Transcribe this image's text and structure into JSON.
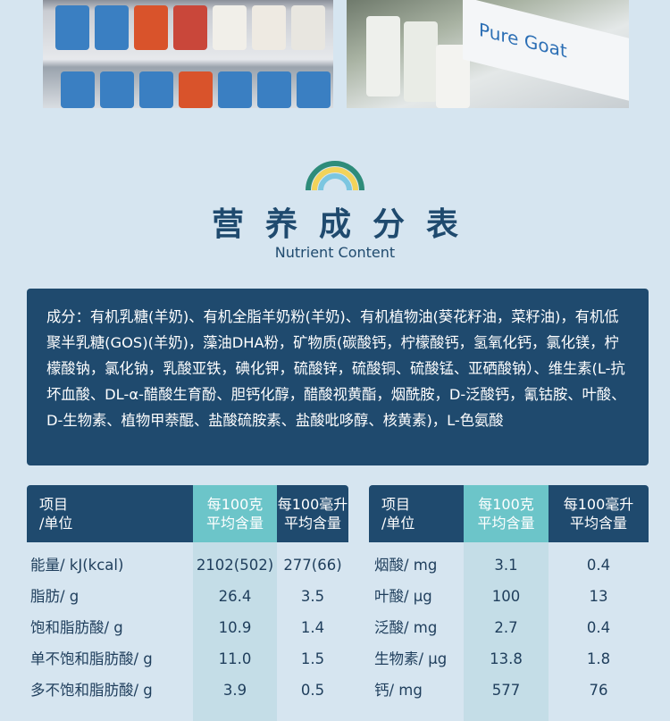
{
  "photos": {
    "right_sign_text": "Pure Goat"
  },
  "heading": {
    "title": "营养成分表",
    "subtitle": "Nutrient Content"
  },
  "ingredients": "成分：有机乳糖(羊奶)、有机全脂羊奶粉(羊奶)、有机植物油(葵花籽油，菜籽油)，有机低聚半乳糖(GOS)(羊奶)，藻油DHA粉，矿物质(碳酸钙，柠檬酸钙，氢氧化钙，氯化镁，柠檬酸钠，氯化钠，乳酸亚铁，碘化钾，硫酸锌，硫酸铜、硫酸锰、亚硒酸钠）、维生素(L-抗坏血酸、DL-α-醋酸生育酚、胆钙化醇，醋酸视黄酯，烟酰胺，D-泛酸钙，氰钴胺、叶酸、D-生物素、植物甲萘醌、盐酸硫胺素、盐酸吡哆醇、核黄素)，L-色氨酸",
  "colors": {
    "navy": "#1f4a6e",
    "teal": "#6cc5c9",
    "background": "#d6e5f0"
  },
  "tables": [
    {
      "headers": {
        "item": [
          "项目",
          "/单位"
        ],
        "per100g": [
          "每100克",
          "平均含量"
        ],
        "per100ml": [
          "每100毫升",
          "平均含量"
        ]
      },
      "rows": [
        {
          "item": "能量/ kJ(kcal)",
          "per100g": "2102(502)",
          "per100ml": "277(66)"
        },
        {
          "item": "脂肪/ g",
          "per100g": "26.4",
          "per100ml": "3.5"
        },
        {
          "item": "饱和脂肪酸/ g",
          "per100g": "10.9",
          "per100ml": "1.4"
        },
        {
          "item": "单不饱和脂肪酸/ g",
          "per100g": "11.0",
          "per100ml": "1.5"
        },
        {
          "item": "多不饱和脂肪酸/ g",
          "per100g": "3.9",
          "per100ml": "0.5"
        }
      ]
    },
    {
      "headers": {
        "item": [
          "项目",
          "/单位"
        ],
        "per100g": [
          "每100克",
          "平均含量"
        ],
        "per100ml": [
          "每100毫升",
          "平均含量"
        ]
      },
      "rows": [
        {
          "item": "烟酸/ mg",
          "per100g": "3.1",
          "per100ml": "0.4"
        },
        {
          "item": "叶酸/ μg",
          "per100g": "100",
          "per100ml": "13"
        },
        {
          "item": "泛酸/ mg",
          "per100g": "2.7",
          "per100ml": "0.4"
        },
        {
          "item": "生物素/ μg",
          "per100g": "13.8",
          "per100ml": "1.8"
        },
        {
          "item": "钙/ mg",
          "per100g": "577",
          "per100ml": "76"
        }
      ]
    }
  ]
}
